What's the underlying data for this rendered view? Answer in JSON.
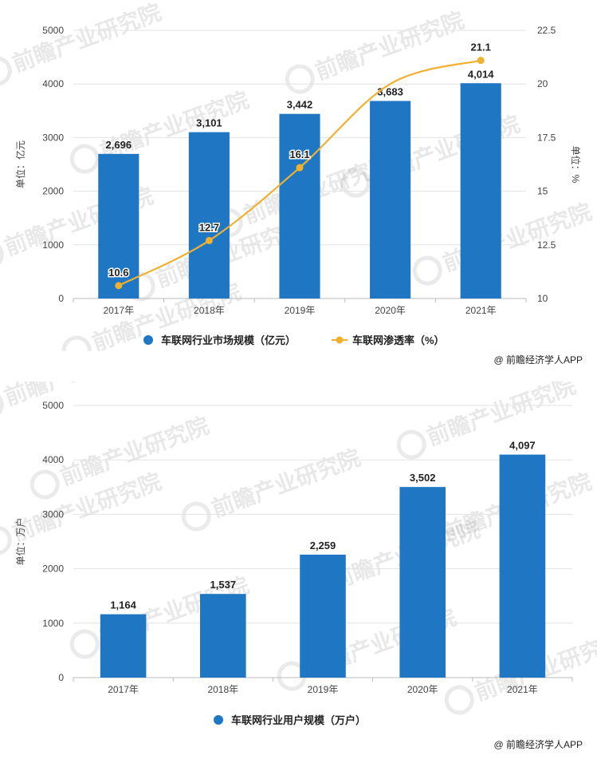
{
  "credits": {
    "top": "@ 前瞻经济学人APP",
    "bottom": "@ 前瞻经济学人APP"
  },
  "watermark": {
    "text": "前瞻产业研究院"
  },
  "chart_data": [
    {
      "type": "bar+line",
      "categories": [
        "2017年",
        "2018年",
        "2019年",
        "2020年",
        "2021年"
      ],
      "series": [
        {
          "name": "车联网行业市场规模（亿元）",
          "kind": "bar",
          "axis": "left",
          "values": [
            2696,
            3101,
            3442,
            3683,
            4014
          ],
          "labels": [
            "2,696",
            "3,101",
            "3,442",
            "3,683",
            "4,014"
          ],
          "color": "#1f77c4"
        },
        {
          "name": "车联网渗透率（%）",
          "kind": "line",
          "axis": "right",
          "values": [
            10.6,
            12.7,
            16.1,
            20.0,
            21.1
          ],
          "labels": [
            "10.6",
            "12.7",
            "16.1",
            "",
            "21.1"
          ],
          "color": "#f0b030"
        }
      ],
      "ylabel": "单位：亿元",
      "ylabel_right": "单位：%",
      "ylim": [
        0,
        5000
      ],
      "yticks": [
        "0",
        "1000",
        "2000",
        "3000",
        "4000",
        "5000"
      ],
      "ylim_right": [
        10,
        22.5
      ],
      "yticks_right": [
        "10",
        "12.5",
        "15",
        "17.5",
        "20",
        "22.5"
      ],
      "grid": true,
      "legend": "bottom"
    },
    {
      "type": "bar",
      "categories": [
        "2017年",
        "2018年",
        "2019年",
        "2020年",
        "2021年"
      ],
      "series": [
        {
          "name": "车联网行业用户规模（万户）",
          "kind": "bar",
          "values": [
            1164,
            1537,
            2259,
            3502,
            4097
          ],
          "labels": [
            "1,164",
            "1,537",
            "2,259",
            "3,502",
            "4,097"
          ],
          "color": "#1f77c4"
        }
      ],
      "ylabel": "单位：万户",
      "ylim": [
        0,
        5000
      ],
      "yticks": [
        "0",
        "1000",
        "2000",
        "3000",
        "4000",
        "5000"
      ],
      "grid": true,
      "legend": "bottom"
    }
  ]
}
